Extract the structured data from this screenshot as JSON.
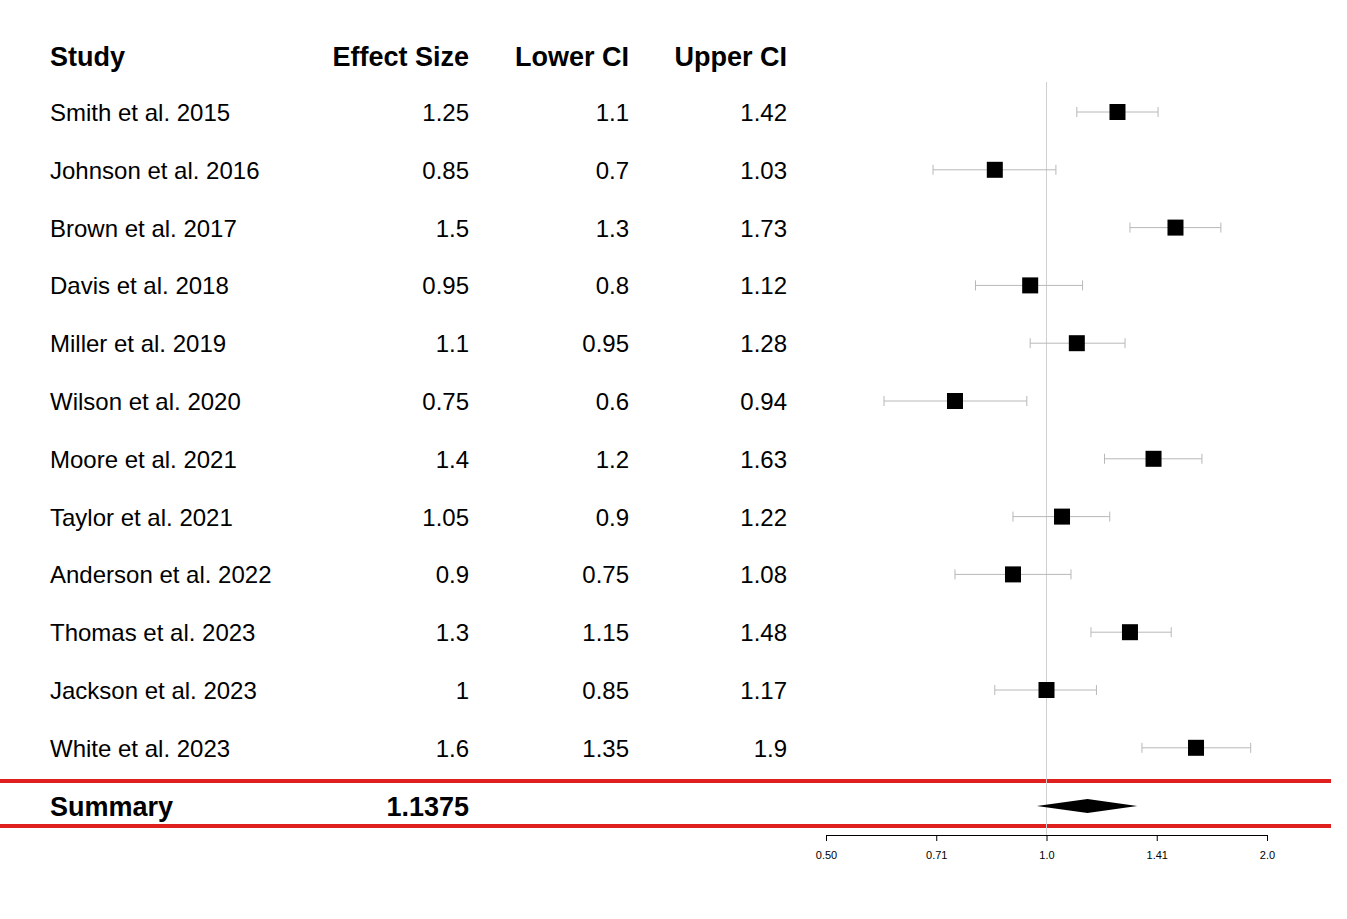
{
  "chart_data": {
    "type": "forest",
    "columns": [
      "Study",
      "Effect Size",
      "Lower CI",
      "Upper CI"
    ],
    "categories": [
      "Smith et al. 2015",
      "Johnson et al. 2016",
      "Brown et al. 2017",
      "Davis et al. 2018",
      "Miller et al. 2019",
      "Wilson et al. 2020",
      "Moore et al. 2021",
      "Taylor et al. 2021",
      "Anderson et al. 2022",
      "Thomas et al. 2023",
      "Jackson et al. 2023",
      "White et al. 2023"
    ],
    "values": [
      1.25,
      0.85,
      1.5,
      0.95,
      1.1,
      0.75,
      1.4,
      1.05,
      0.9,
      1.3,
      1,
      1.6
    ],
    "lower": [
      1.1,
      0.7,
      1.3,
      0.8,
      0.95,
      0.6,
      1.2,
      0.9,
      0.75,
      1.15,
      0.85,
      1.35
    ],
    "upper": [
      1.42,
      1.03,
      1.73,
      1.12,
      1.28,
      0.94,
      1.63,
      1.22,
      1.08,
      1.48,
      1.17,
      1.9
    ],
    "summary": {
      "label": "Summary",
      "value": 1.1375,
      "lower": 0.97,
      "upper": 1.33
    },
    "reference": 1,
    "log": "x",
    "xlim": [
      0.5,
      2
    ],
    "xticks": [
      {
        "value": 0.5,
        "label": "0.50"
      },
      {
        "value": 0.7071,
        "label": "0.71"
      },
      {
        "value": 1,
        "label": "1.0"
      },
      {
        "value": 1.4142,
        "label": "1.41"
      },
      {
        "value": 2,
        "label": "2.0"
      }
    ],
    "color": "#000000"
  }
}
